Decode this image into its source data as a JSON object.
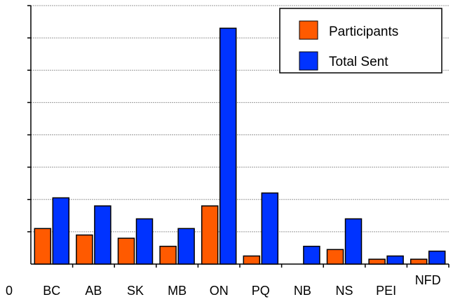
{
  "chart_data": {
    "type": "bar",
    "categories": [
      "BC",
      "AB",
      "SK",
      "MB",
      "ON",
      "PQ",
      "NB",
      "NS",
      "PEI",
      "NFD"
    ],
    "series": [
      {
        "name": "Participants",
        "color": "#ff5a00",
        "values": [
          11,
          9,
          8,
          5.5,
          18,
          2.5,
          0,
          4.5,
          1.5,
          1.5
        ]
      },
      {
        "name": "Total Sent",
        "color": "#0033ff",
        "values": [
          20.5,
          18,
          14,
          11,
          73,
          22,
          5.5,
          14,
          2.5,
          4
        ]
      }
    ],
    "y_tick_labels": [
      "0"
    ],
    "ylim": [
      0,
      80
    ],
    "grid": true,
    "legend_position": "top-right"
  }
}
